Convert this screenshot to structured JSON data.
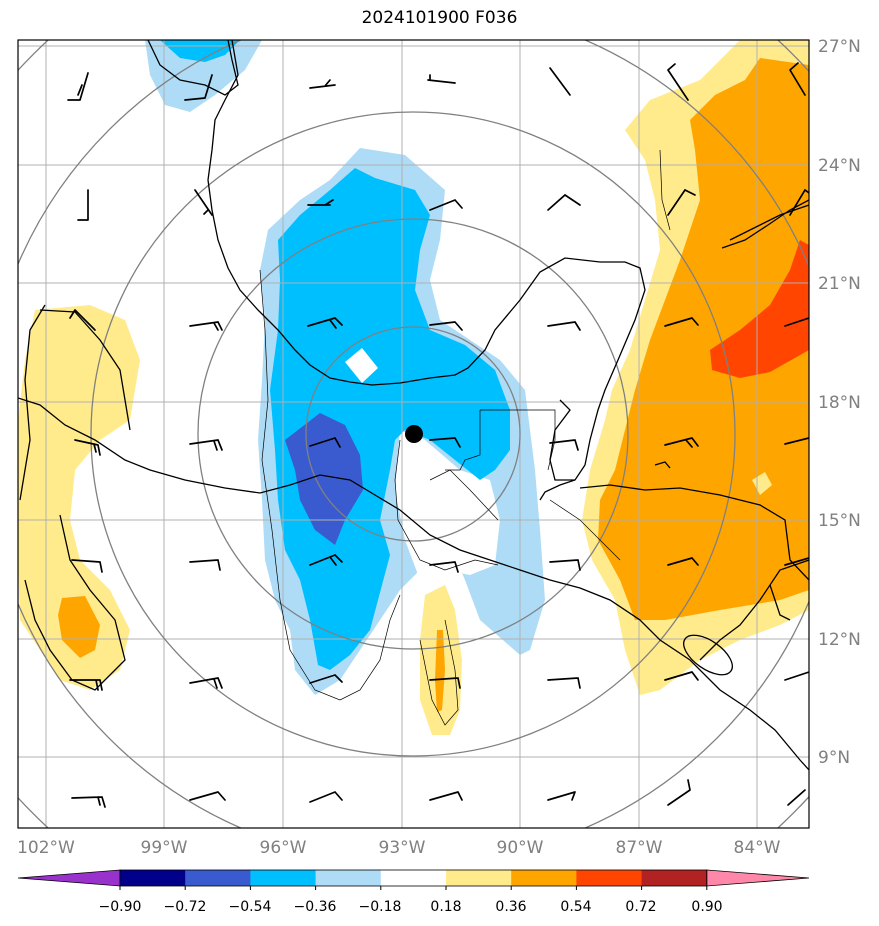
{
  "title": "2024101900 F036",
  "lat_labels": [
    "27°N",
    "24°N",
    "21°N",
    "18°N",
    "15°N",
    "12°N",
    "9°N"
  ],
  "lon_labels": [
    "102°W",
    "99°W",
    "96°W",
    "93°W",
    "90°W",
    "87°W",
    "84°W"
  ],
  "colorbar": {
    "ticks": [
      "−0.90",
      "−0.72",
      "−0.54",
      "−0.36",
      "−0.18",
      "0.18",
      "0.36",
      "0.54",
      "0.72",
      "0.90"
    ],
    "colors": [
      "#9932cc",
      "#00008b",
      "#3a5bd0",
      "#00bfff",
      "#aedcf7",
      "#ffffff",
      "#ffeb8c",
      "#ffa500",
      "#ff4500",
      "#b22222",
      "#ff88aa"
    ]
  },
  "center_marker": {
    "lat": 17.2,
    "lon": -92.6
  },
  "range_rings": "concentric",
  "colors": {
    "grid": "#b0b0b0",
    "rings": "#808080",
    "coast": "#000000",
    "light_blue": "#aedcf7",
    "blue": "#00bfff",
    "dark_blue": "#3a5bd0",
    "light_yellow": "#ffeb8c",
    "orange": "#ffa500",
    "red_orange": "#ff4500"
  }
}
